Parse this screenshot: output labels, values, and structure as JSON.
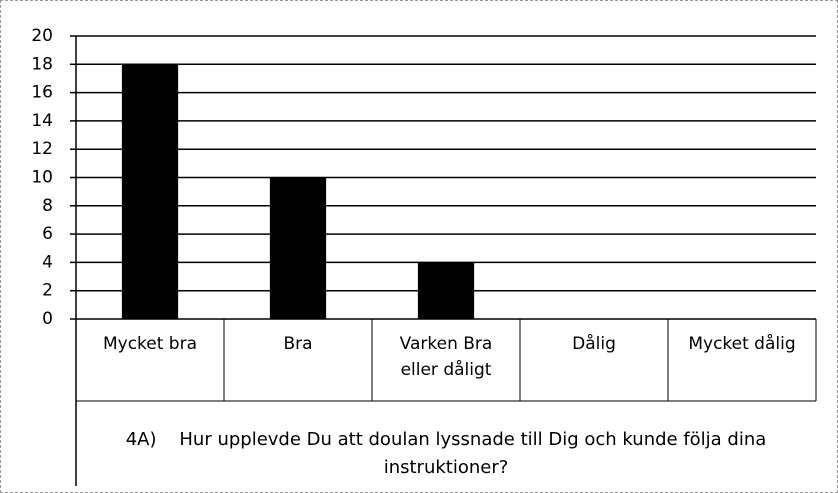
{
  "chart_data": {
    "type": "bar",
    "title": "4A)    Hur upplevde Du att doulan lyssnade till Dig och kunde följa dina instruktioner?",
    "categories": [
      "Mycket bra",
      "Bra",
      "Varken Bra eller dåligt",
      "Dålig",
      "Mycket dålig"
    ],
    "values": [
      18,
      10,
      4,
      0,
      0
    ],
    "color": "#000000",
    "ylim": [
      0,
      20
    ],
    "yticks": [
      0,
      2,
      4,
      6,
      8,
      10,
      12,
      14,
      16,
      18,
      20
    ],
    "grid": true
  }
}
